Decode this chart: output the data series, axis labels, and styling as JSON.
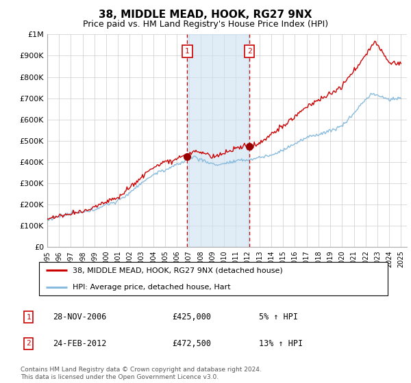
{
  "title": "38, MIDDLE MEAD, HOOK, RG27 9NX",
  "subtitle": "Price paid vs. HM Land Registry's House Price Index (HPI)",
  "line_color_property": "#cc0000",
  "line_color_hpi": "#88bbdd",
  "background_color": "#ffffff",
  "grid_color": "#cccccc",
  "ylim": [
    0,
    1000000
  ],
  "yticks": [
    0,
    100000,
    200000,
    300000,
    400000,
    500000,
    600000,
    700000,
    800000,
    900000,
    1000000
  ],
  "ytick_labels": [
    "£0",
    "£100K",
    "£200K",
    "£300K",
    "£400K",
    "£500K",
    "£600K",
    "£700K",
    "£800K",
    "£900K",
    "£1M"
  ],
  "transaction1": {
    "date": "28-NOV-2006",
    "price": 425000,
    "label": "1",
    "pct": "5%"
  },
  "transaction2": {
    "date": "24-FEB-2012",
    "price": 472500,
    "label": "2",
    "pct": "13%"
  },
  "legend_property": "38, MIDDLE MEAD, HOOK, RG27 9NX (detached house)",
  "legend_hpi": "HPI: Average price, detached house, Hart",
  "footer": "Contains HM Land Registry data © Crown copyright and database right 2024.\nThis data is licensed under the Open Government Licence v3.0.",
  "shaded_region_color": "#cce0f0",
  "vline_color": "#cc0000",
  "marker_color": "#990000",
  "t1_year": 2006.9,
  "t2_year": 2012.15,
  "xmin": 1995,
  "xmax": 2025.5
}
